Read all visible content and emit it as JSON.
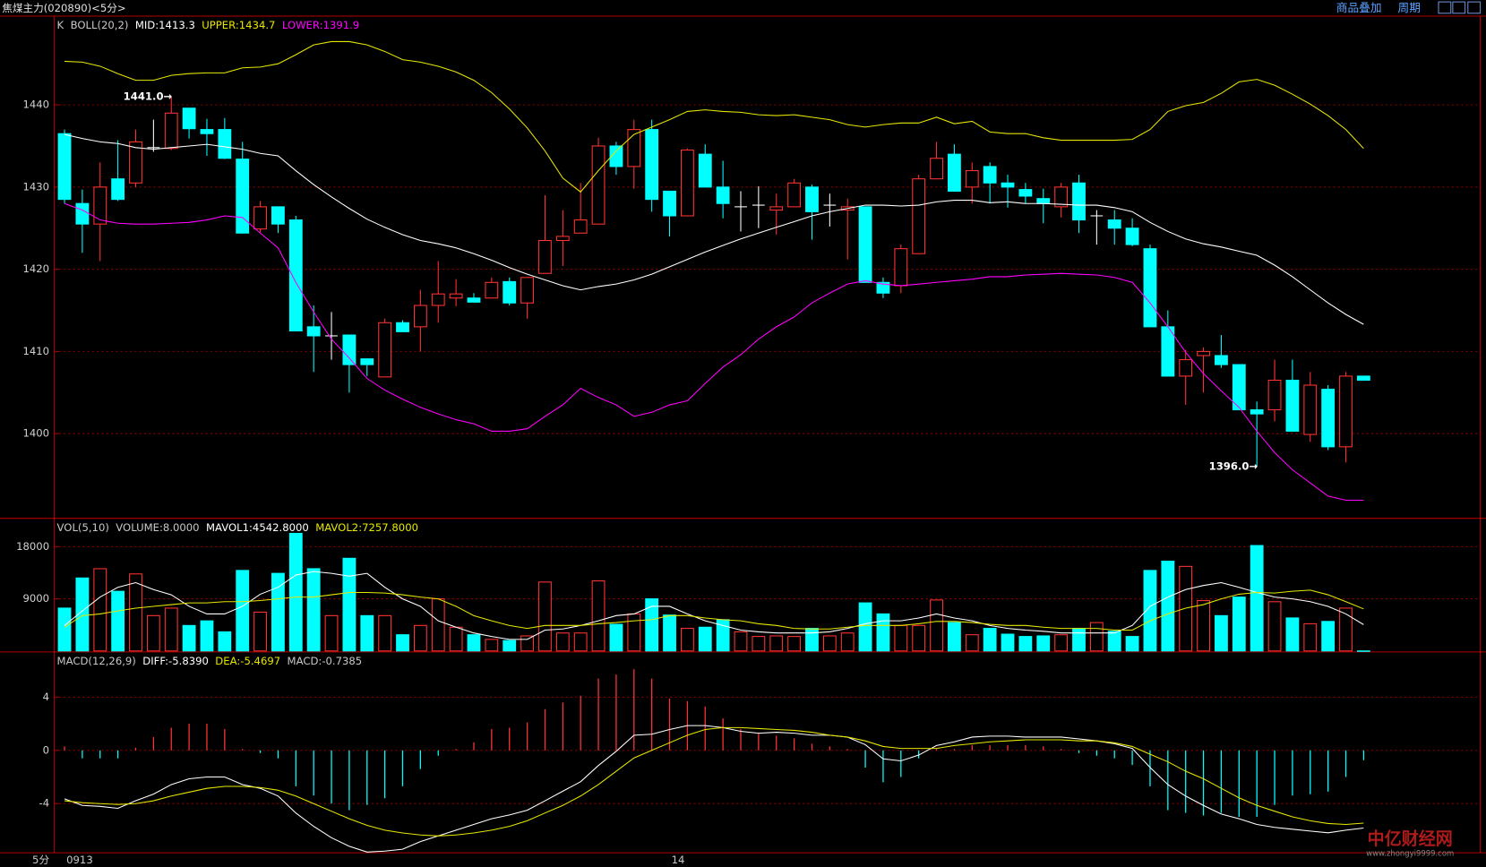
{
  "header": {
    "title": "焦煤主力(020890)<5分>",
    "buttons": [
      "商品叠加",
      "周期"
    ]
  },
  "period": "5分",
  "watermark": {
    "logo": "中亿财经网",
    "url": "www.zhongyi9999.com"
  },
  "chart_data": [
    {
      "type": "candlestick",
      "title": "K",
      "indicator": "BOLL(20,2)",
      "up_color": "#ff3232",
      "down_color": "#00ffff",
      "doji_color": "#ffffff",
      "open": [
        1436.5,
        1428,
        1425.5,
        1431,
        1430.5,
        1434.8,
        1434.7,
        1439.6,
        1437,
        1437,
        1433.4,
        1424.9,
        1427.6,
        1426,
        1413,
        1411.9,
        1412,
        1409.1,
        1406.9,
        1413.5,
        1413,
        1415.6,
        1416.5,
        1416.5,
        1416.5,
        1418.5,
        1415.9,
        1419.5,
        1423.5,
        1424.4,
        1425.5,
        1435,
        1432.5,
        1437,
        1429.5,
        1426.5,
        1434,
        1430,
        1427.6,
        1427.8,
        1427.2,
        1427.6,
        1430,
        1427.8,
        1427.2,
        1427.6,
        1418.4,
        1418,
        1421.9,
        1431,
        1434,
        1430,
        1432.5,
        1430.5,
        1429.7,
        1428.6,
        1427.6,
        1430.5,
        1426.5,
        1426,
        1425,
        1422.5,
        1413,
        1407,
        1409.5,
        1409.5,
        1408.4,
        1402.9,
        1402.9,
        1406.5,
        1399.9,
        1405.4,
        1398.4,
        1407
      ],
      "high": [
        1437,
        1429.7,
        1433,
        1435.7,
        1437,
        1438.2,
        1441,
        1439.6,
        1438.3,
        1438.4,
        1435.5,
        1428.3,
        1427.6,
        1426.5,
        1415.6,
        1414.8,
        1412,
        1409.1,
        1414,
        1413.8,
        1417.5,
        1421,
        1418.8,
        1417.1,
        1419,
        1419,
        1419,
        1429,
        1427.2,
        1430.5,
        1436,
        1435.5,
        1438.2,
        1438.2,
        1429.5,
        1434.7,
        1435.2,
        1433.2,
        1429.5,
        1430.1,
        1429.2,
        1431,
        1430.3,
        1429.2,
        1428.6,
        1427.6,
        1419,
        1423,
        1431.5,
        1435.5,
        1435.2,
        1433,
        1433,
        1431.5,
        1430.5,
        1429.8,
        1430.5,
        1431.5,
        1427.2,
        1427.2,
        1426.2,
        1423,
        1415,
        1410.2,
        1410.5,
        1412,
        1408.4,
        1403.9,
        1409,
        1409,
        1407.5,
        1405.9,
        1407.5,
        1407
      ],
      "low": [
        1428,
        1422,
        1421,
        1428.3,
        1430,
        1434.3,
        1434.5,
        1435.9,
        1433.8,
        1433.4,
        1424.4,
        1424.5,
        1424.4,
        1412.5,
        1407.5,
        1409,
        1405,
        1407,
        1406.9,
        1412.4,
        1410,
        1413.5,
        1415.5,
        1416,
        1416.5,
        1415.6,
        1414,
        1419.5,
        1420.4,
        1424.4,
        1425.5,
        1431.5,
        1429.8,
        1427,
        1424,
        1426.5,
        1430,
        1426.2,
        1424.6,
        1425,
        1424.2,
        1427.6,
        1423.6,
        1425.2,
        1421.2,
        1418.4,
        1416.5,
        1417.1,
        1421.9,
        1431,
        1429.5,
        1428,
        1428,
        1427.5,
        1428,
        1425.6,
        1426.3,
        1424.4,
        1423,
        1423,
        1422.8,
        1413,
        1407,
        1403.5,
        1405,
        1408,
        1402.9,
        1396,
        1401.5,
        1400.3,
        1399,
        1398,
        1396.5,
        1406.5
      ],
      "close": [
        1428.5,
        1425.5,
        1430,
        1428.5,
        1435.5,
        1434.8,
        1439,
        1437.1,
        1436.5,
        1433.5,
        1424.4,
        1427.6,
        1425.5,
        1412.5,
        1411.9,
        1411.9,
        1408.4,
        1408.4,
        1413.5,
        1412.4,
        1415.6,
        1417,
        1417,
        1416,
        1418.4,
        1415.9,
        1419,
        1423.5,
        1424,
        1426,
        1435,
        1432.5,
        1437,
        1428.5,
        1426.5,
        1434.5,
        1430,
        1428,
        1427.6,
        1427.8,
        1427.6,
        1430.5,
        1427,
        1427.8,
        1427.6,
        1418.4,
        1417.1,
        1422.5,
        1431,
        1433.5,
        1429.5,
        1432,
        1430.5,
        1430,
        1428.9,
        1428,
        1430,
        1426,
        1426.5,
        1425,
        1423,
        1413,
        1407,
        1409,
        1410,
        1408.4,
        1402.9,
        1402.4,
        1406.5,
        1400.3,
        1405.9,
        1398.4,
        1407,
        1406.5
      ],
      "series": [
        {
          "name": "MID:1413.3",
          "color": "#ffffff",
          "values": [
            1436.4,
            1435.9,
            1435.5,
            1435.3,
            1434.8,
            1434.6,
            1434.8,
            1435.0,
            1435.2,
            1434.9,
            1434.6,
            1434.1,
            1433.8,
            1432.0,
            1430.3,
            1428.8,
            1427.4,
            1426.1,
            1425.1,
            1424.2,
            1423.5,
            1423.1,
            1422.6,
            1421.9,
            1421.1,
            1420.2,
            1419.4,
            1418.7,
            1418.0,
            1417.5,
            1417.9,
            1418.2,
            1418.7,
            1419.4,
            1420.3,
            1421.2,
            1422.1,
            1422.9,
            1423.7,
            1424.4,
            1425.1,
            1425.8,
            1426.5,
            1427.0,
            1427.4,
            1427.8,
            1427.8,
            1427.7,
            1427.8,
            1428.2,
            1428.4,
            1428.4,
            1428.1,
            1428.2,
            1428.0,
            1428.0,
            1427.9,
            1427.8,
            1427.8,
            1427.5,
            1427.0,
            1425.7,
            1424.6,
            1423.7,
            1423.1,
            1422.7,
            1422.2,
            1421.7,
            1420.5,
            1419.1,
            1417.5,
            1415.9,
            1414.5,
            1413.3
          ]
        },
        {
          "name": "UPPER:1434.7",
          "color": "#e6e600",
          "values": [
            1445.3,
            1445.2,
            1444.7,
            1443.8,
            1443.0,
            1443.0,
            1443.6,
            1443.8,
            1443.9,
            1443.9,
            1444.5,
            1444.6,
            1445.0,
            1446.1,
            1447.3,
            1447.7,
            1447.7,
            1447.3,
            1446.5,
            1445.5,
            1445.2,
            1444.7,
            1444.0,
            1443.0,
            1441.5,
            1439.5,
            1437.2,
            1434.4,
            1431.1,
            1429.4,
            1432.0,
            1434.4,
            1436.4,
            1437.3,
            1438.2,
            1439.2,
            1439.4,
            1439.2,
            1439.1,
            1438.8,
            1438.7,
            1438.8,
            1438.5,
            1438.2,
            1437.6,
            1437.3,
            1437.6,
            1437.8,
            1437.8,
            1438.5,
            1437.7,
            1438.0,
            1436.7,
            1436.5,
            1436.5,
            1436.0,
            1435.7,
            1435.7,
            1435.7,
            1435.7,
            1435.8,
            1437.0,
            1439.2,
            1439.9,
            1440.3,
            1441.4,
            1442.8,
            1443.1,
            1442.4,
            1441.3,
            1440.1,
            1438.7,
            1437.0,
            1434.7
          ]
        },
        {
          "name": "LOWER:1391.9",
          "color": "#ff00ff",
          "values": [
            1428.0,
            1427.2,
            1426.0,
            1425.6,
            1425.5,
            1425.5,
            1425.6,
            1425.7,
            1426.0,
            1426.5,
            1426.3,
            1424.4,
            1422.6,
            1418.4,
            1414.8,
            1411.5,
            1409.2,
            1406.7,
            1405.3,
            1404.2,
            1403.2,
            1402.4,
            1401.7,
            1401.2,
            1400.3,
            1400.3,
            1400.6,
            1402.1,
            1403.5,
            1405.5,
            1404.4,
            1403.5,
            1402.1,
            1402.6,
            1403.5,
            1404.0,
            1406.1,
            1408.1,
            1409.6,
            1411.5,
            1413.0,
            1414.2,
            1415.9,
            1417.1,
            1418.2,
            1418.6,
            1418.2,
            1418.0,
            1418.2,
            1418.4,
            1418.6,
            1418.8,
            1419.1,
            1419.1,
            1419.3,
            1419.4,
            1419.5,
            1419.4,
            1419.3,
            1419.0,
            1418.4,
            1415.9,
            1413.0,
            1409.9,
            1407.3,
            1405.2,
            1403.2,
            1400.3,
            1397.7,
            1395.6,
            1394.0,
            1392.4,
            1391.9,
            1391.9
          ]
        }
      ],
      "annotations": [
        {
          "text": "1441.0→",
          "index": 6,
          "value": 1441
        },
        {
          "text": "1396.0→",
          "index": 67,
          "value": 1396
        }
      ],
      "ylim": [
        1389.7,
        1450.8
      ],
      "yticks": [
        1400,
        1410,
        1420,
        1430,
        1440
      ],
      "grid": true
    },
    {
      "type": "volume",
      "title": "VOL(5,10)",
      "volume_label": "VOLUME:8.0000",
      "values": [
        7400,
        12600,
        14200,
        10300,
        13300,
        6100,
        7400,
        4400,
        5200,
        3300,
        13900,
        6700,
        13400,
        20300,
        14200,
        6100,
        16000,
        6100,
        6100,
        2800,
        4400,
        9000,
        4100,
        2800,
        2000,
        1800,
        2600,
        11900,
        3100,
        3100,
        12100,
        4600,
        6400,
        9000,
        6200,
        3900,
        4100,
        5400,
        3300,
        2500,
        2600,
        2500,
        3900,
        2600,
        3100,
        8300,
        6400,
        4400,
        4400,
        8800,
        4900,
        2800,
        3900,
        2900,
        2500,
        2600,
        2800,
        3900,
        4900,
        3400,
        2500,
        13900,
        15500,
        14600,
        8700,
        6100,
        9300,
        18200,
        8500,
        5700,
        4700,
        5100,
        7400,
        8
      ],
      "series": [
        {
          "name": "MAVOL1:4542.8000",
          "color": "#ffffff",
          "values": [
            4400,
            6900,
            9300,
            11000,
            11800,
            10600,
            9700,
            7700,
            6400,
            6400,
            7700,
            9800,
            11000,
            13100,
            13700,
            13400,
            12900,
            13400,
            11000,
            9000,
            7700,
            5200,
            4100,
            3100,
            2500,
            2000,
            2000,
            3600,
            3800,
            4400,
            5200,
            6100,
            6400,
            7700,
            7700,
            6400,
            5200,
            4400,
            3600,
            3300,
            3100,
            3100,
            3100,
            3300,
            3900,
            4700,
            5200,
            5200,
            5700,
            6400,
            5700,
            5200,
            4400,
            3900,
            3600,
            3400,
            3100,
            3100,
            3100,
            3100,
            4400,
            7700,
            9300,
            10600,
            11300,
            11800,
            11000,
            10100,
            9300,
            9000,
            8500,
            7700,
            6400,
            4542.8
          ]
        },
        {
          "name": "MAVOL2:7257.8000",
          "color": "#e6e600",
          "values": [
            4100,
            6100,
            6400,
            6900,
            7400,
            7700,
            8000,
            8300,
            8300,
            8500,
            8500,
            8700,
            9000,
            9300,
            9300,
            9700,
            10100,
            10100,
            10000,
            9700,
            9300,
            9000,
            7700,
            6100,
            5200,
            4400,
            3900,
            4400,
            4400,
            4400,
            4700,
            4900,
            5200,
            5400,
            6100,
            6100,
            5700,
            5400,
            5200,
            4700,
            4400,
            3900,
            3800,
            3800,
            4100,
            4400,
            4400,
            4400,
            4700,
            5100,
            5100,
            4900,
            4600,
            4400,
            4400,
            4100,
            3900,
            3900,
            3900,
            3600,
            3600,
            5200,
            6400,
            7400,
            8000,
            9000,
            9800,
            10100,
            10000,
            10300,
            10500,
            9700,
            8500,
            7257.8
          ]
        }
      ],
      "ylim": [
        0,
        22900
      ],
      "yticks": [
        9000,
        18000
      ],
      "grid": true
    },
    {
      "type": "macd",
      "title": "MACD(12,26,9)",
      "macd_name": "MACD:-0.7385",
      "macd_color": "#c8c8c8",
      "positive_color": "#ff3232",
      "negative_color": "#00ffff",
      "values": [
        0.3,
        -0.6,
        -0.6,
        -0.6,
        0.2,
        1.0,
        1.7,
        2.0,
        2.0,
        1.6,
        0.1,
        -0.2,
        -0.6,
        -2.7,
        -3.4,
        -4.0,
        -4.5,
        -4.1,
        -3.6,
        -2.7,
        -1.4,
        -0.4,
        0.1,
        0.6,
        1.6,
        1.7,
        2.1,
        3.1,
        3.6,
        4.1,
        5.4,
        5.7,
        6.1,
        5.4,
        3.9,
        3.7,
        3.3,
        2.4,
        1.6,
        1.3,
        1.1,
        0.9,
        0.5,
        0.3,
        0.1,
        -1.3,
        -2.4,
        -2.0,
        -0.6,
        0.1,
        0.1,
        0.4,
        0.4,
        0.4,
        0.4,
        0.3,
        0.1,
        -0.2,
        -0.4,
        -0.6,
        -1.1,
        -2.7,
        -4.5,
        -4.7,
        -4.9,
        -4.7,
        -5.0,
        -5.0,
        -4.1,
        -3.4,
        -3.3,
        -3.1,
        -2.0,
        -0.7385
      ],
      "series": [
        {
          "name": "DIFF:-5.8390",
          "color": "#ffffff",
          "values": [
            -3.64,
            -4.14,
            -4.21,
            -4.36,
            -3.79,
            -3.29,
            -2.57,
            -2.14,
            -2.0,
            -2.0,
            -2.57,
            -2.86,
            -3.43,
            -4.71,
            -5.71,
            -6.57,
            -7.21,
            -7.64,
            -7.57,
            -7.43,
            -6.86,
            -6.43,
            -6.0,
            -5.57,
            -5.14,
            -4.86,
            -4.5,
            -3.79,
            -3.07,
            -2.36,
            -1.14,
            -0.07,
            1.14,
            1.21,
            1.57,
            1.86,
            1.86,
            1.71,
            1.43,
            1.29,
            1.36,
            1.29,
            1.14,
            1.14,
            1.0,
            0.43,
            -0.64,
            -0.79,
            -0.36,
            0.36,
            0.64,
            1.0,
            1.07,
            1.07,
            1.0,
            1.0,
            1.0,
            0.86,
            0.71,
            0.5,
            0.14,
            -1.29,
            -2.57,
            -3.43,
            -4.14,
            -4.79,
            -5.14,
            -5.57,
            -5.79,
            -5.93,
            -6.07,
            -6.2,
            -6.0,
            -5.839
          ]
        },
        {
          "name": "DEA:-5.4697",
          "color": "#e6e600",
          "values": [
            -3.79,
            -3.93,
            -4.0,
            -4.07,
            -4.0,
            -3.79,
            -3.43,
            -3.14,
            -2.86,
            -2.71,
            -2.71,
            -2.79,
            -3.0,
            -3.43,
            -4.0,
            -4.57,
            -5.14,
            -5.64,
            -6.0,
            -6.21,
            -6.36,
            -6.43,
            -6.36,
            -6.21,
            -6.0,
            -5.71,
            -5.29,
            -4.71,
            -4.14,
            -3.43,
            -2.57,
            -1.57,
            -0.57,
            0,
            0.57,
            1.14,
            1.57,
            1.71,
            1.71,
            1.64,
            1.57,
            1.5,
            1.36,
            1.14,
            1.0,
            0.71,
            0.29,
            0.14,
            0.14,
            0.14,
            0.36,
            0.5,
            0.64,
            0.71,
            0.79,
            0.79,
            0.79,
            0.71,
            0.71,
            0.57,
            0.29,
            -0.29,
            -0.86,
            -1.57,
            -2.14,
            -2.86,
            -3.57,
            -4.14,
            -4.57,
            -5.0,
            -5.29,
            -5.5,
            -5.57,
            -5.4697
          ]
        }
      ],
      "categories": [
        "0913",
        null,
        null,
        null,
        null,
        null,
        null,
        null,
        null,
        null,
        null,
        null,
        null,
        null,
        null,
        null,
        null,
        null,
        null,
        null,
        null,
        null,
        null,
        null,
        null,
        null,
        null,
        null,
        null,
        null,
        null,
        null,
        null,
        null,
        "14",
        null,
        null,
        null,
        null,
        null,
        null,
        null,
        null,
        null,
        null,
        null,
        null,
        null,
        null,
        null,
        null,
        null,
        null,
        null,
        null,
        null,
        null,
        null,
        null,
        null,
        null,
        null,
        null,
        null,
        null,
        null,
        null,
        null,
        null,
        null,
        null,
        null,
        null,
        null
      ],
      "ylim": [
        -7.7,
        7.4
      ],
      "yticks": [
        -4,
        0,
        4
      ],
      "grid": true
    }
  ]
}
